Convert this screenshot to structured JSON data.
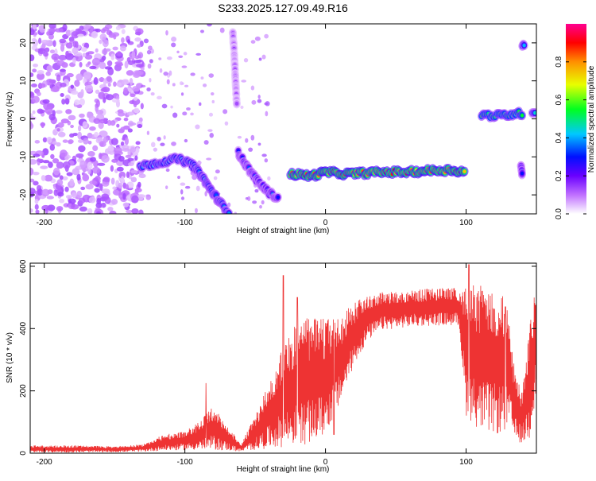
{
  "title": "S233.2025.127.09.49.R16",
  "chart_data": [
    {
      "type": "heatmap",
      "xlabel": "Height of straight line (km)",
      "ylabel": "Frequency (Hz)",
      "xlim": [
        -210,
        150
      ],
      "ylim": [
        -25,
        25
      ],
      "x_ticks": [
        -200,
        -100,
        0,
        100
      ],
      "y_ticks": [
        -20,
        -10,
        0,
        10,
        20
      ],
      "colorbar": {
        "label": "Normalized spectral amplitude",
        "range": [
          0,
          1
        ],
        "ticks": [
          "0.0",
          "0.2",
          "0.4",
          "0.6",
          "0.8"
        ]
      },
      "features": [
        {
          "kind": "diffuse-noise",
          "x_range": [
            -210,
            -130
          ],
          "y_range": [
            -25,
            25
          ],
          "amplitude": 0.12
        },
        {
          "kind": "ridge",
          "points": [
            [
              -132,
              -12.5
            ],
            [
              -118,
              -11.5
            ],
            [
              -105,
              -10.5
            ],
            [
              -95,
              -12
            ],
            [
              -88,
              -15
            ],
            [
              -82,
              -18.5
            ],
            [
              -75,
              -22
            ],
            [
              -68,
              -25
            ]
          ],
          "amplitude": 0.45
        },
        {
          "kind": "ridge",
          "points": [
            [
              -62,
              -9
            ],
            [
              -55,
              -13
            ],
            [
              -48,
              -16.5
            ],
            [
              -40,
              -19.5
            ],
            [
              -33,
              -21
            ]
          ],
          "amplitude": 0.35
        },
        {
          "kind": "ridge",
          "points": [
            [
              -25,
              -14.5
            ],
            [
              -10,
              -15
            ],
            [
              0,
              -14
            ],
            [
              15,
              -14.5
            ],
            [
              30,
              -14.2
            ],
            [
              45,
              -14
            ],
            [
              60,
              -14
            ],
            [
              75,
              -13.6
            ],
            [
              90,
              -13.5
            ],
            [
              100,
              -14
            ]
          ],
          "amplitude": 0.9
        },
        {
          "kind": "ridge",
          "points": [
            [
              111,
              1
            ],
            [
              122,
              0.8
            ],
            [
              133,
              1.2
            ],
            [
              141,
              1.5
            ]
          ],
          "amplitude": 0.6
        },
        {
          "kind": "ridge",
          "points": [
            [
              140,
              19.5
            ],
            [
              142,
              20
            ]
          ],
          "amplitude": 0.45
        },
        {
          "kind": "ridge",
          "points": [
            [
              139,
              -12
            ],
            [
              140,
              -15
            ]
          ],
          "amplitude": 0.35
        },
        {
          "kind": "ridge",
          "points": [
            [
              147,
              1.5
            ],
            [
              150,
              1.5
            ]
          ],
          "amplitude": 0.45
        },
        {
          "kind": "ridge",
          "points": [
            [
              -66,
              23
            ],
            [
              -65,
              18
            ],
            [
              -64,
              10
            ],
            [
              -63,
              3
            ]
          ],
          "amplitude": 0.15
        }
      ]
    },
    {
      "type": "line",
      "xlabel": "Height of straight line (km)",
      "ylabel": "SNR (10 * v/v)",
      "xlim": [
        -210,
        150
      ],
      "ylim": [
        0,
        610
      ],
      "x_ticks": [
        -200,
        -100,
        0,
        100
      ],
      "y_ticks": [
        0,
        200,
        400,
        600
      ],
      "series": [
        {
          "color": "#ee3333",
          "envelope": [
            {
              "x": -210,
              "low": 2,
              "high": 25
            },
            {
              "x": -180,
              "low": 2,
              "high": 25
            },
            {
              "x": -150,
              "low": 3,
              "high": 22
            },
            {
              "x": -130,
              "low": 5,
              "high": 28
            },
            {
              "x": -115,
              "low": 8,
              "high": 60
            },
            {
              "x": -100,
              "low": 10,
              "high": 70
            },
            {
              "x": -90,
              "low": 10,
              "high": 100
            },
            {
              "x": -80,
              "low": 10,
              "high": 150
            },
            {
              "x": -70,
              "low": 8,
              "high": 90
            },
            {
              "x": -60,
              "low": 5,
              "high": 30
            },
            {
              "x": -50,
              "low": 10,
              "high": 120
            },
            {
              "x": -40,
              "low": 15,
              "high": 230
            },
            {
              "x": -30,
              "low": 20,
              "high": 350
            },
            {
              "x": -20,
              "low": 25,
              "high": 420
            },
            {
              "x": -10,
              "low": 30,
              "high": 440
            },
            {
              "x": 0,
              "low": 60,
              "high": 430
            },
            {
              "x": 10,
              "low": 150,
              "high": 440
            },
            {
              "x": 20,
              "low": 280,
              "high": 480
            },
            {
              "x": 30,
              "low": 360,
              "high": 510
            },
            {
              "x": 40,
              "low": 395,
              "high": 520
            },
            {
              "x": 60,
              "low": 405,
              "high": 525
            },
            {
              "x": 80,
              "low": 410,
              "high": 530
            },
            {
              "x": 95,
              "low": 410,
              "high": 530
            },
            {
              "x": 100,
              "low": 120,
              "high": 540
            },
            {
              "x": 110,
              "low": 70,
              "high": 540
            },
            {
              "x": 120,
              "low": 60,
              "high": 530
            },
            {
              "x": 125,
              "low": 60,
              "high": 520
            },
            {
              "x": 130,
              "low": 80,
              "high": 460
            },
            {
              "x": 135,
              "low": 40,
              "high": 250
            },
            {
              "x": 140,
              "low": 30,
              "high": 200
            },
            {
              "x": 145,
              "low": 40,
              "high": 420
            },
            {
              "x": 150,
              "low": 200,
              "high": 540
            }
          ],
          "spikes": [
            {
              "x": -85,
              "y": 225
            },
            {
              "x": -30,
              "y": 570
            },
            {
              "x": -20,
              "y": 500
            },
            {
              "x": 6,
              "y": 60
            },
            {
              "x": 102,
              "y": 605
            },
            {
              "x": 128,
              "y": 470
            }
          ]
        }
      ]
    }
  ]
}
